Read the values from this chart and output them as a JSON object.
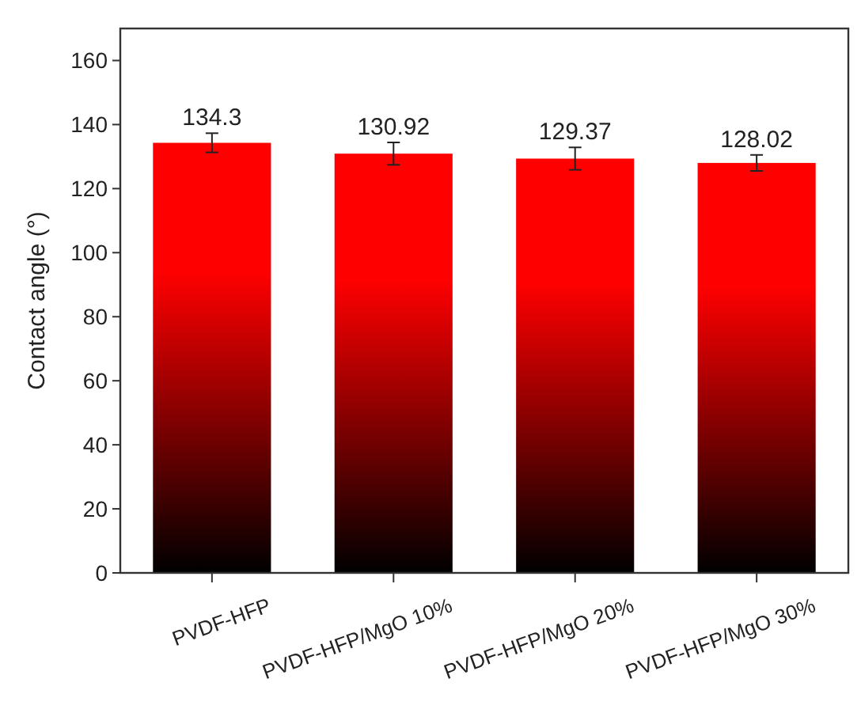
{
  "chart_data": {
    "type": "bar",
    "ylabel": "Contact angle (°)",
    "categories": [
      "PVDF-HFP",
      "PVDF-HFP/MgO 10%",
      "PVDF-HFP/MgO 20%",
      "PVDF-HFP/MgO 30%"
    ],
    "values": [
      134.3,
      130.92,
      129.37,
      128.02
    ],
    "errors": [
      3,
      3.5,
      3.5,
      2.5
    ],
    "color": "#ff0000",
    "ylim": [
      0,
      170
    ],
    "yticks": [
      0,
      20,
      40,
      60,
      80,
      100,
      120,
      140,
      160
    ],
    "data_labels": true
  }
}
